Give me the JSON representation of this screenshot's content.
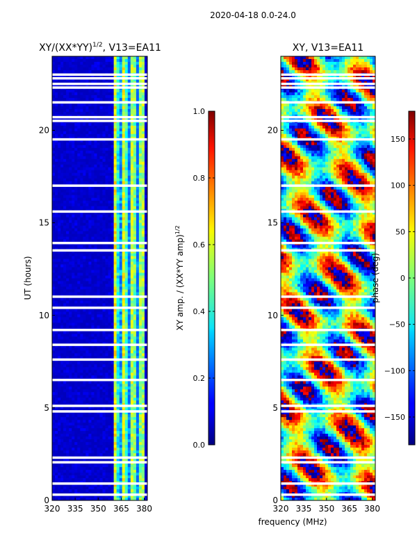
{
  "figure": {
    "suptitle": "2020-04-18 0.0-24.0",
    "xlabel": "frequency (MHz)"
  },
  "chart_data": [
    {
      "type": "heatmap",
      "title": "XY/(XX*YY)",
      "title_exponent": "1/2",
      "title_suffix": ", V13=EA11",
      "xlabel": "",
      "ylabel": "UT (hours)",
      "xlim": [
        320,
        382
      ],
      "ylim": [
        0,
        24
      ],
      "xticks": [
        "320",
        "335",
        "350",
        "365",
        "380"
      ],
      "yticks": [
        "0",
        "5",
        "10",
        "15",
        "20"
      ],
      "colorbar": {
        "label": "XY amp. / (XX*YY amp)",
        "label_exponent": "1/2",
        "range": [
          0.0,
          1.0
        ],
        "ticks": [
          "0.0",
          "0.2",
          "0.4",
          "0.6",
          "0.8",
          "1.0"
        ],
        "colormap": "jet"
      },
      "summary": "Low normalized amplitude (~0.05) across most of the band; elevated amplitude (~0.3-0.7) between about 360 and 380 MHz; several time gaps (white rows)."
    },
    {
      "type": "heatmap",
      "title": "XY, V13=EA11",
      "xlabel": "frequency (MHz)",
      "ylabel": "",
      "xlim": [
        320,
        382
      ],
      "ylim": [
        0,
        24
      ],
      "xticks": [
        "320",
        "335",
        "350",
        "365",
        "380"
      ],
      "yticks": [
        "0",
        "5",
        "10",
        "15",
        "20"
      ],
      "colorbar": {
        "label": "phase (deg)",
        "range": [
          -180,
          180
        ],
        "ticks": [
          "−150",
          "−100",
          "−50",
          "0",
          "50",
          "100",
          "150"
        ],
        "colormap": "jet"
      },
      "summary": "Phase in degrees spanning -180 to 180, with banded structure in time and frequency."
    }
  ],
  "gaps_hours": [
    0.3,
    0.9,
    2.05,
    2.3,
    4.8,
    5.1,
    6.5,
    7.6,
    8.4,
    9.2,
    10.4,
    11.0,
    13.5,
    13.9,
    15.6,
    17.0,
    19.5,
    20.5,
    20.7,
    21.5,
    22.3,
    22.5,
    22.8,
    23.0
  ]
}
